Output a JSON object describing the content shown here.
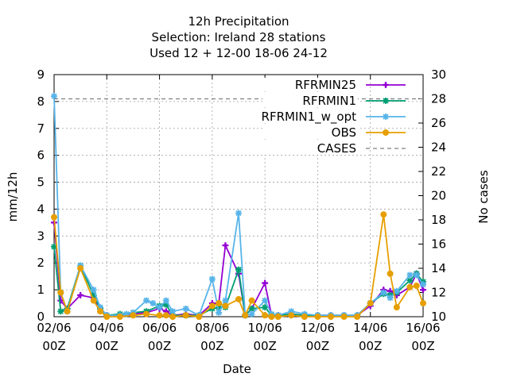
{
  "chart_data": {
    "type": "line",
    "title_lines": [
      "12h Precipitation",
      "Selection: Ireland      28 stations",
      "Used  12 + 12-00 18-06 24-12"
    ],
    "xlabel": "Date",
    "ylabel": "mm/12h",
    "y2label": "No cases",
    "xlim": [
      0,
      28
    ],
    "ylim": [
      0,
      9
    ],
    "y2lim": [
      10,
      30
    ],
    "grid": true,
    "legend_position": "top-right",
    "x_ticks": [
      {
        "x": 0,
        "line1": "02/06",
        "line2": "00Z"
      },
      {
        "x": 4,
        "line1": "04/06",
        "line2": "00Z"
      },
      {
        "x": 8,
        "line1": "06/06",
        "line2": "00Z"
      },
      {
        "x": 12,
        "line1": "08/06",
        "line2": "00Z"
      },
      {
        "x": 16,
        "line1": "10/06",
        "line2": "00Z"
      },
      {
        "x": 20,
        "line1": "12/06",
        "line2": "00Z"
      },
      {
        "x": 24,
        "line1": "14/06",
        "line2": "00Z"
      },
      {
        "x": 28,
        "line1": "16/06",
        "line2": "00Z"
      }
    ],
    "y_ticks": [
      "0",
      "1",
      "2",
      "3",
      "4",
      "5",
      "6",
      "7",
      "8",
      "9"
    ],
    "y2_ticks": [
      "10",
      "12",
      "14",
      "16",
      "18",
      "20",
      "22",
      "24",
      "26",
      "28",
      "30"
    ],
    "series": [
      {
        "name": "RFRMIN25",
        "color": "#9400d3",
        "marker": "plus",
        "x": [
          0,
          0.5,
          1,
          2,
          3,
          3.5,
          4,
          5,
          6,
          7,
          8,
          8.5,
          9,
          10,
          11,
          12,
          12.5,
          13,
          14,
          14.5,
          15,
          16,
          16.5,
          17,
          18,
          19,
          20,
          21,
          22,
          23,
          24,
          25,
          25.5,
          26,
          27,
          27.5,
          28
        ],
        "y": [
          3.5,
          0.6,
          0.3,
          0.8,
          0.7,
          0.3,
          0.05,
          0.05,
          0.1,
          0.15,
          0.3,
          0.2,
          0.05,
          0.1,
          0.05,
          0.5,
          0.5,
          2.65,
          1.6,
          0.05,
          0.3,
          1.25,
          0.05,
          0.05,
          0.1,
          0.05,
          0.05,
          0.05,
          0.05,
          0.05,
          0.4,
          1.0,
          0.95,
          0.8,
          1.1,
          1.6,
          1.0
        ]
      },
      {
        "name": "RFRMIN1",
        "color": "#009e73",
        "marker": "star",
        "x": [
          0,
          0.5,
          1,
          2,
          3,
          3.5,
          4,
          5,
          6,
          7,
          8,
          8.5,
          9,
          10,
          11,
          12,
          12.5,
          13,
          14,
          14.5,
          15,
          16,
          16.5,
          17,
          18,
          19,
          20,
          21,
          22,
          23,
          24,
          25,
          25.5,
          26,
          27,
          27.5,
          28
        ],
        "y": [
          2.6,
          0.2,
          0.3,
          1.9,
          0.8,
          0.3,
          0.05,
          0.1,
          0.15,
          0.2,
          0.4,
          0.45,
          0.05,
          0.05,
          0.05,
          0.3,
          0.35,
          0.35,
          1.75,
          0.05,
          0.3,
          0.35,
          0.05,
          0.05,
          0.1,
          0.05,
          0.05,
          0.05,
          0.05,
          0.05,
          0.5,
          0.85,
          0.8,
          0.9,
          1.35,
          1.6,
          1.3
        ]
      },
      {
        "name": "RFRMIN1_w_opt",
        "legend_label": "RFRMIN1_w_opt",
        "color": "#56b4e9",
        "marker": "star",
        "x": [
          0,
          0.5,
          1,
          2,
          3,
          3.5,
          4,
          5,
          5.5,
          6,
          7,
          7.5,
          8,
          8.5,
          9,
          10,
          11,
          12,
          12.5,
          13,
          14,
          14.5,
          15,
          16,
          16.5,
          17,
          18,
          19,
          20,
          21,
          22,
          23,
          24,
          25,
          25.5,
          26,
          27,
          27.5,
          28
        ],
        "y": [
          8.2,
          0.9,
          0.2,
          1.9,
          1.0,
          0.35,
          0.05,
          0.05,
          0.1,
          0.15,
          0.6,
          0.5,
          0.35,
          0.6,
          0.2,
          0.3,
          0.05,
          1.4,
          0.15,
          0.6,
          3.85,
          0.05,
          0.1,
          0.6,
          0.1,
          0.05,
          0.2,
          0.1,
          0.05,
          0.05,
          0.05,
          0.05,
          0.5,
          0.9,
          0.7,
          0.95,
          1.55,
          1.55,
          1.2
        ]
      },
      {
        "name": "OBS",
        "color": "#e69f00",
        "marker": "circle",
        "x": [
          0,
          0.5,
          1,
          2,
          3,
          3.5,
          4,
          5,
          6,
          7,
          8,
          8.5,
          9,
          10,
          11,
          12,
          12.5,
          13,
          14,
          14.5,
          15,
          16,
          16.5,
          17,
          18,
          19,
          20,
          21,
          22,
          23,
          24,
          25,
          25.5,
          26,
          27,
          27.5,
          28
        ],
        "y": [
          3.7,
          0.9,
          0.2,
          1.8,
          0.6,
          0.2,
          0.0,
          0.0,
          0.05,
          0.1,
          0.05,
          0.05,
          0.0,
          0.05,
          0.0,
          0.4,
          0.5,
          0.4,
          0.65,
          0.05,
          0.6,
          0.05,
          0.0,
          0.0,
          0.05,
          0.0,
          0.0,
          0.0,
          0.0,
          0.0,
          0.5,
          3.8,
          1.6,
          0.35,
          1.1,
          1.15,
          0.5
        ]
      },
      {
        "name": "CASES",
        "color": "#808080",
        "dashed": true,
        "axis": "y2",
        "x": [
          0,
          28
        ],
        "y": [
          28,
          28
        ]
      }
    ]
  }
}
